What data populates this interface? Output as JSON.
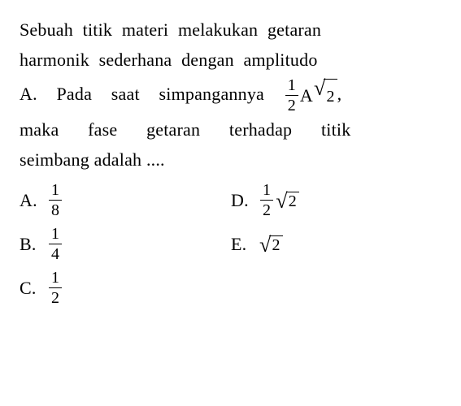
{
  "colors": {
    "text": "#000000",
    "background": "#ffffff"
  },
  "typography": {
    "font_family": "Georgia, Times New Roman, serif",
    "base_fontsize": 22,
    "frac_fontsize": 20
  },
  "question": {
    "line1": {
      "w1": "Sebuah",
      "w2": "titik",
      "w3": "materi",
      "w4": "melakukan",
      "w5": "getaran"
    },
    "line2": {
      "w1": "harmonik",
      "w2": "sederhana",
      "w3": "dengan",
      "w4": "amplitudo"
    },
    "line3": {
      "w1": "A.",
      "w2": "Pada",
      "w3": "saat",
      "w4": "simpangannya",
      "frac": {
        "num": "1",
        "den": "2"
      },
      "after_frac": "A",
      "sqrt_val": "2",
      "comma": ","
    },
    "line4": {
      "w1": "maka",
      "w2": "fase",
      "w3": "getaran",
      "w4": "terhadap",
      "w5": "titik"
    },
    "line5": {
      "w1": "seimbang",
      "w2": "adalah",
      "w3": "...."
    }
  },
  "options": {
    "A": {
      "label": "A.",
      "frac": {
        "num": "1",
        "den": "8"
      }
    },
    "B": {
      "label": "B.",
      "frac": {
        "num": "1",
        "den": "4"
      }
    },
    "C": {
      "label": "C.",
      "frac": {
        "num": "1",
        "den": "2"
      }
    },
    "D": {
      "label": "D.",
      "frac": {
        "num": "1",
        "den": "2"
      },
      "sqrt_val": "2"
    },
    "E": {
      "label": "E.",
      "sqrt_val": "2"
    }
  }
}
